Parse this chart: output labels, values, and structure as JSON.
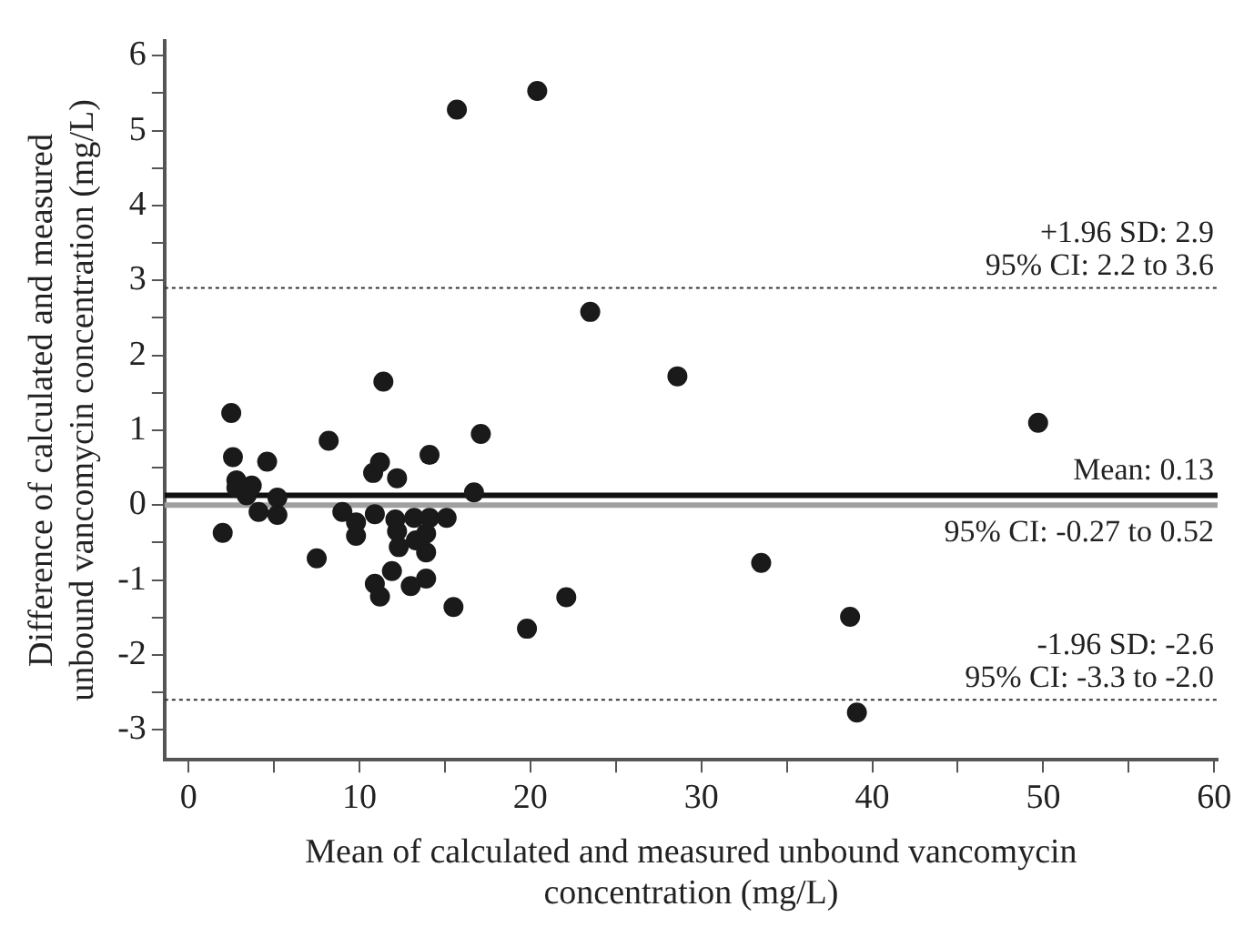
{
  "chart_data": {
    "type": "scatter",
    "xlabel": "Mean of calculated and measured unbound vancomycin\nconcentration (mg/L)",
    "ylabel": "Difference of calculated and measured\nunbound vancomycin concentration (mg/L)",
    "x": [
      15.7,
      20.4,
      23.5,
      28.6,
      49.7,
      33.5,
      38.7,
      39.1,
      22.1,
      19.8,
      2.5,
      2.6,
      2.8,
      2.8,
      3.7,
      3.4,
      4.6,
      5.2,
      4.1,
      5.2,
      2.0,
      8.2,
      7.5,
      9.0,
      9.8,
      9.8,
      10.9,
      10.8,
      11.2,
      11.4,
      12.2,
      12.1,
      12.2,
      12.3,
      11.9,
      10.9,
      11.2,
      13.0,
      13.9,
      13.2,
      14.1,
      15.1,
      13.3,
      13.9,
      13.9,
      14.1,
      17.1,
      16.7,
      15.5
    ],
    "values": [
      5.28,
      5.53,
      2.58,
      1.72,
      1.1,
      -0.77,
      -1.49,
      -2.77,
      -1.23,
      -1.65,
      1.23,
      0.64,
      0.33,
      0.23,
      0.26,
      0.13,
      0.58,
      0.1,
      -0.09,
      -0.13,
      -0.37,
      0.86,
      -0.71,
      -0.09,
      -0.23,
      -0.41,
      -0.12,
      0.43,
      0.57,
      1.65,
      0.36,
      -0.19,
      -0.35,
      -0.56,
      -0.88,
      -1.05,
      -1.22,
      -1.08,
      -0.98,
      -0.17,
      -0.17,
      -0.17,
      -0.47,
      -0.38,
      -0.63,
      0.67,
      0.95,
      0.17,
      -1.36
    ],
    "color": "#1a1a1a",
    "marker": "circle",
    "xlim": [
      -1.4,
      60.2
    ],
    "xticks": [
      0,
      {
        "value": 5,
        "label": null
      },
      10,
      {
        "value": 15,
        "label": null
      },
      20,
      {
        "value": 25,
        "label": null
      },
      30,
      {
        "value": 35,
        "label": null
      },
      40,
      {
        "value": 45,
        "label": null
      },
      50,
      {
        "value": 55,
        "label": null
      },
      60
    ],
    "ylim": [
      -3.4,
      6.2
    ],
    "yticks": [
      -3,
      {
        "value": -2.5,
        "label": null
      },
      -2,
      {
        "value": -1.5,
        "label": null
      },
      -1,
      {
        "value": -0.5,
        "label": null
      },
      0,
      {
        "value": 0.5,
        "label": null
      },
      1,
      {
        "value": 1.5,
        "label": null
      },
      2,
      {
        "value": 2.5,
        "label": null
      },
      3,
      {
        "value": 3.5,
        "label": null
      },
      4,
      {
        "value": 4.5,
        "label": null
      },
      5,
      {
        "value": 5.5,
        "label": null
      },
      6
    ],
    "grid": false,
    "legend": false,
    "ref_lines": [
      {
        "axis": "y",
        "value": 0,
        "color": "#a0a0a0",
        "line_style": "solid"
      },
      {
        "axis": "y",
        "value": 2.9,
        "color": "#333333",
        "line_style": "dotted",
        "label": "+1.96 SD: 2.9"
      },
      {
        "axis": "y",
        "value": 0.13,
        "color": "#111111",
        "line_style": "solid",
        "label": "Mean: 0.13"
      },
      {
        "axis": "y",
        "value": -2.6,
        "color": "#333333",
        "line_style": "dotted",
        "label": "-1.96 SD: -2.6"
      }
    ],
    "annotations": [
      "95% CI: 2.2 to 3.6",
      "95% CI: -0.27 to 0.52",
      "95% CI: -3.3 to -2.0"
    ]
  }
}
